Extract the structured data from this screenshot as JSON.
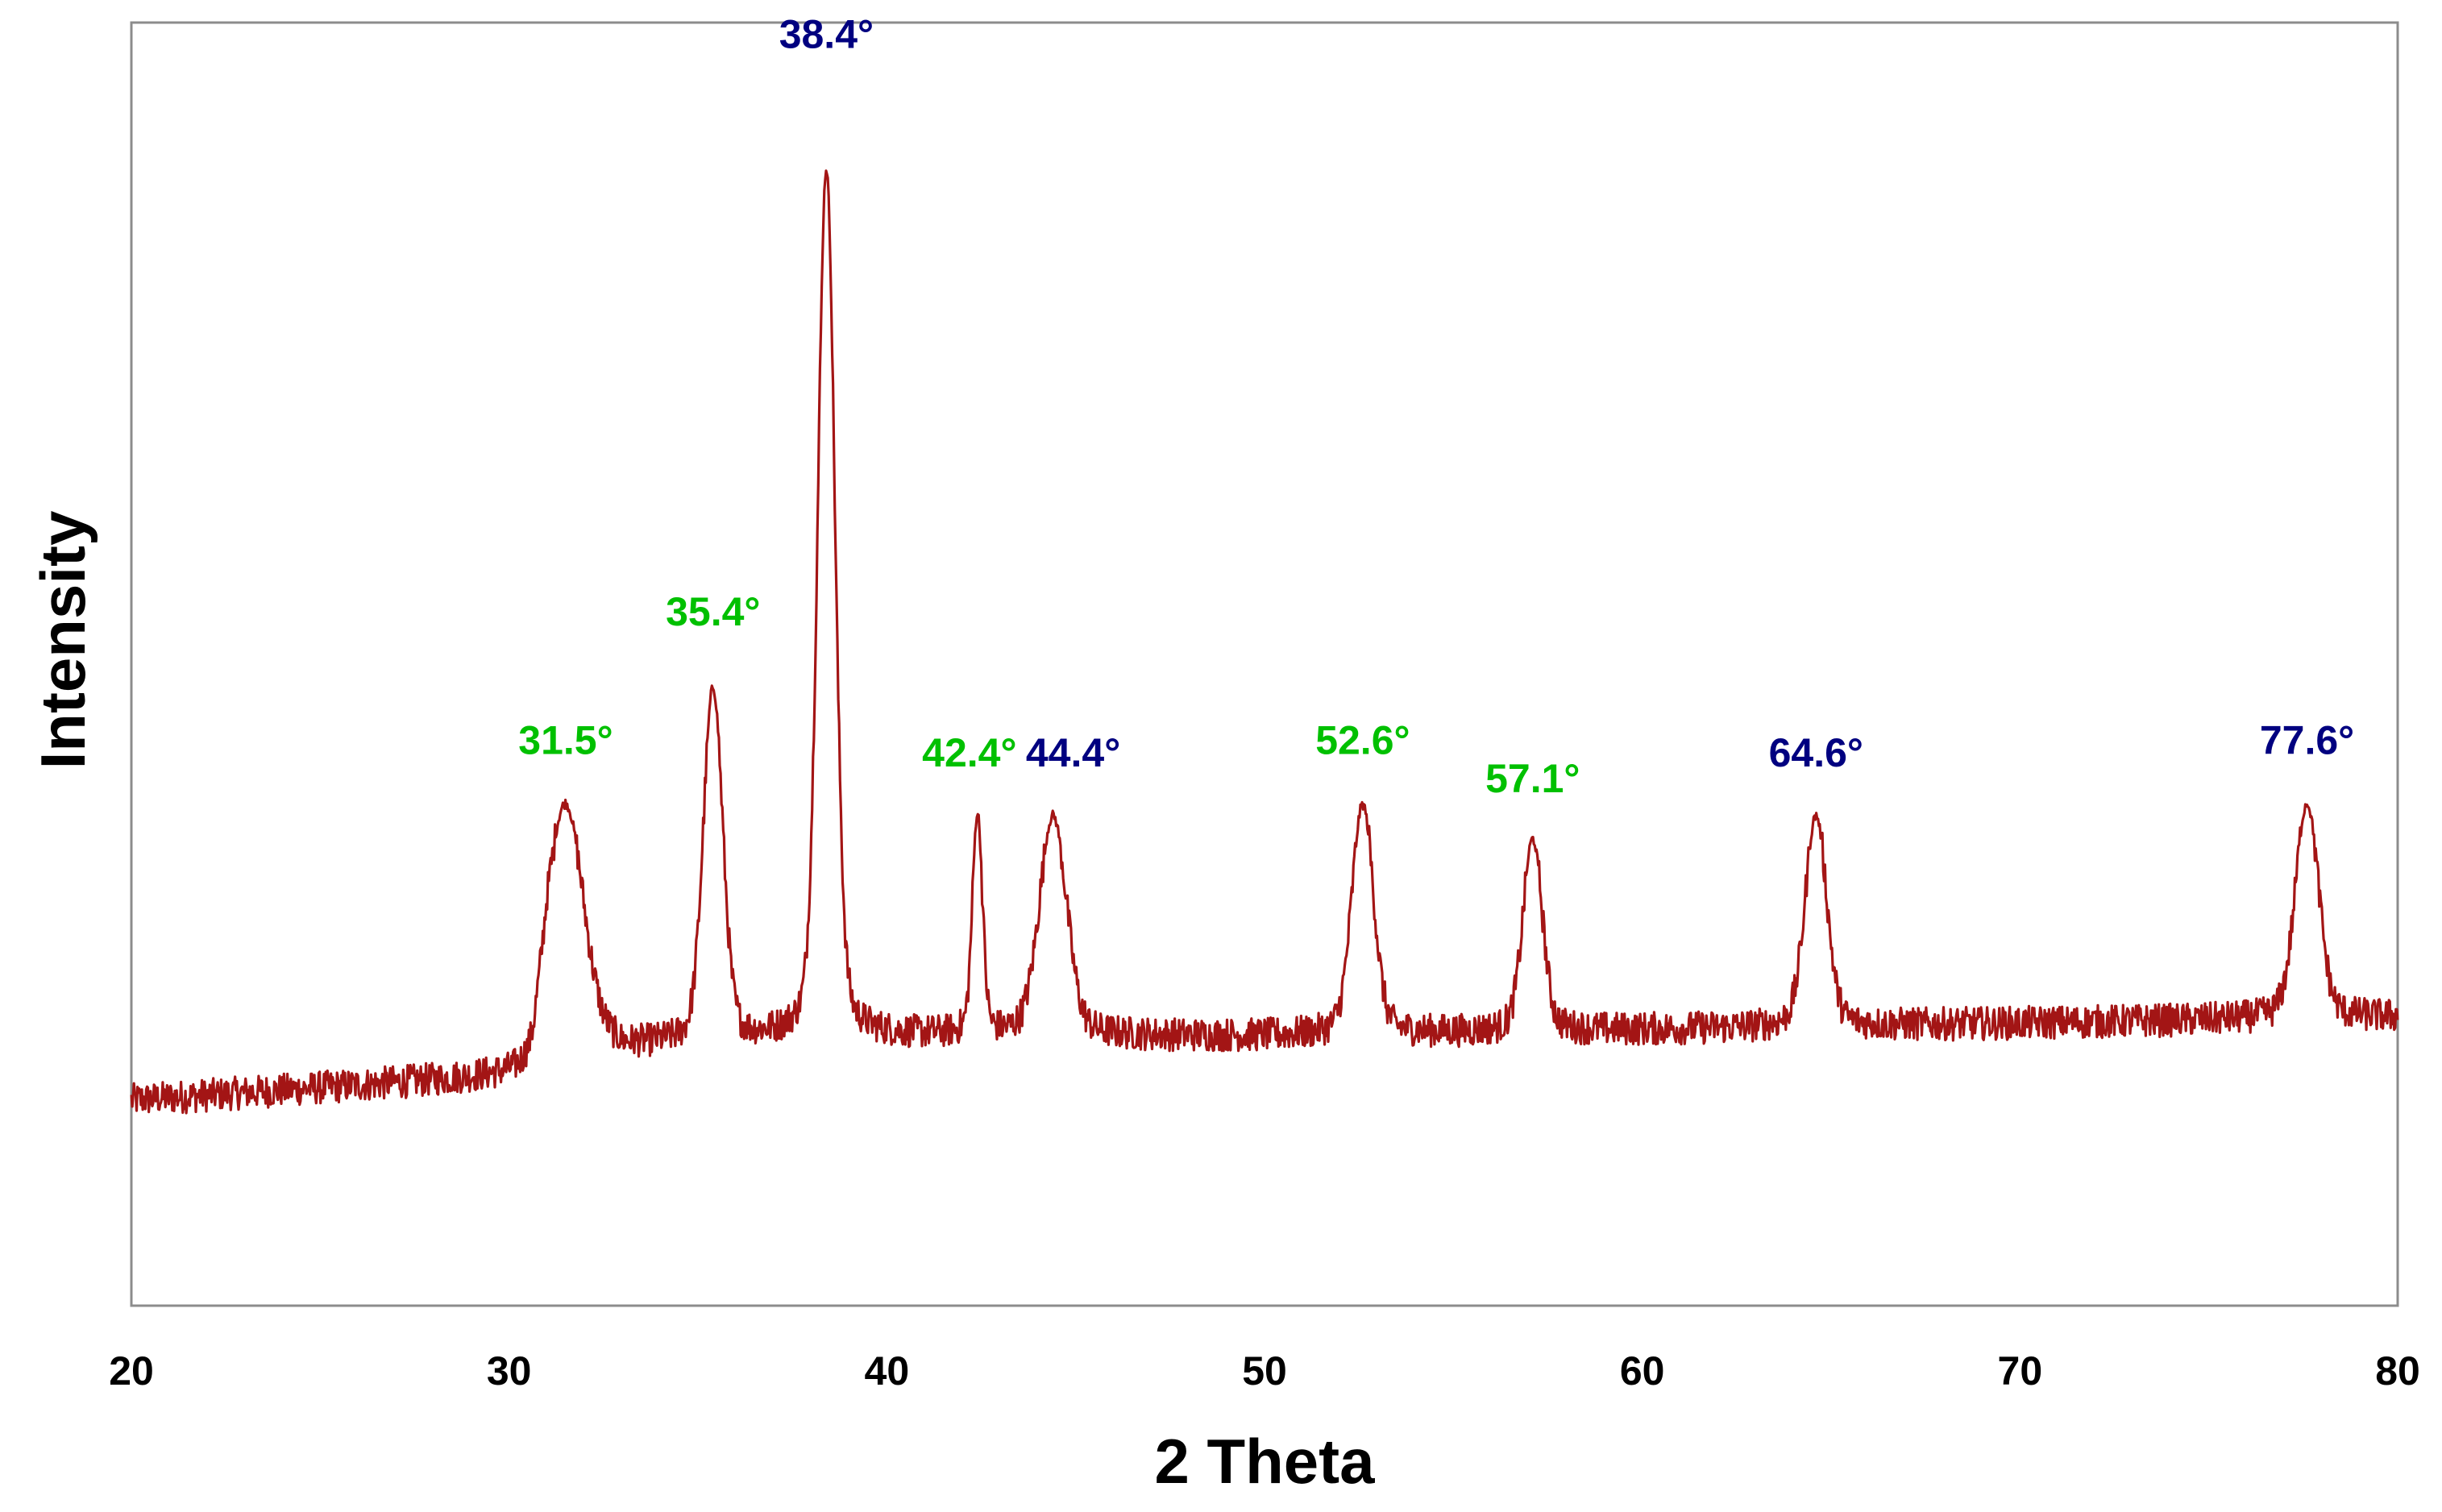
{
  "chart_data": {
    "type": "line",
    "title": "",
    "xlabel": "2 Theta",
    "ylabel": "Intensity",
    "xlim": [
      20,
      80
    ],
    "ylim": [
      0,
      1
    ],
    "x_ticks": [
      20,
      30,
      40,
      50,
      60,
      70,
      80
    ],
    "x_tick_labels": [
      "20",
      "30",
      "40",
      "50",
      "60",
      "70",
      "80"
    ],
    "y_ticks_visible": false,
    "grid": false,
    "legend": null,
    "series": [
      {
        "name": "XRD pattern",
        "color": "#a31515",
        "baseline": [
          [
            20,
            0.16
          ],
          [
            30.6,
            0.18
          ],
          [
            31,
            0.22
          ],
          [
            33,
            0.2
          ],
          [
            38,
            0.21
          ],
          [
            44,
            0.21
          ],
          [
            50,
            0.21
          ],
          [
            60,
            0.215
          ],
          [
            70,
            0.22
          ],
          [
            80,
            0.225
          ]
        ],
        "peaks": [
          {
            "x": 31.5,
            "y": 0.41,
            "width": 0.45
          },
          {
            "x": 35.4,
            "y": 0.51,
            "width": 0.25
          },
          {
            "x": 38.4,
            "y": 0.96,
            "width": 0.22
          },
          {
            "x": 42.4,
            "y": 0.4,
            "width": 0.13
          },
          {
            "x": 44.4,
            "y": 0.4,
            "width": 0.35
          },
          {
            "x": 52.6,
            "y": 0.41,
            "width": 0.28
          },
          {
            "x": 57.1,
            "y": 0.38,
            "width": 0.25
          },
          {
            "x": 64.6,
            "y": 0.4,
            "width": 0.28
          },
          {
            "x": 77.6,
            "y": 0.41,
            "width": 0.3
          }
        ]
      }
    ],
    "annotations": [
      {
        "text": "31.5°",
        "x": 31.5,
        "color": "#00c000"
      },
      {
        "text": "35.4°",
        "x": 35.4,
        "color": "#00c000"
      },
      {
        "text": "38.4°",
        "x": 38.4,
        "color": "#000080"
      },
      {
        "text": "42.4°",
        "x": 42.4,
        "color": "#00c000"
      },
      {
        "text": "44.4°",
        "x": 44.4,
        "color": "#000080"
      },
      {
        "text": "52.6°",
        "x": 52.6,
        "color": "#00c000"
      },
      {
        "text": "57.1°",
        "x": 57.1,
        "color": "#00c000"
      },
      {
        "text": "64.6°",
        "x": 64.6,
        "color": "#000080"
      },
      {
        "text": "77.6°",
        "x": 77.6,
        "color": "#000080"
      }
    ]
  }
}
